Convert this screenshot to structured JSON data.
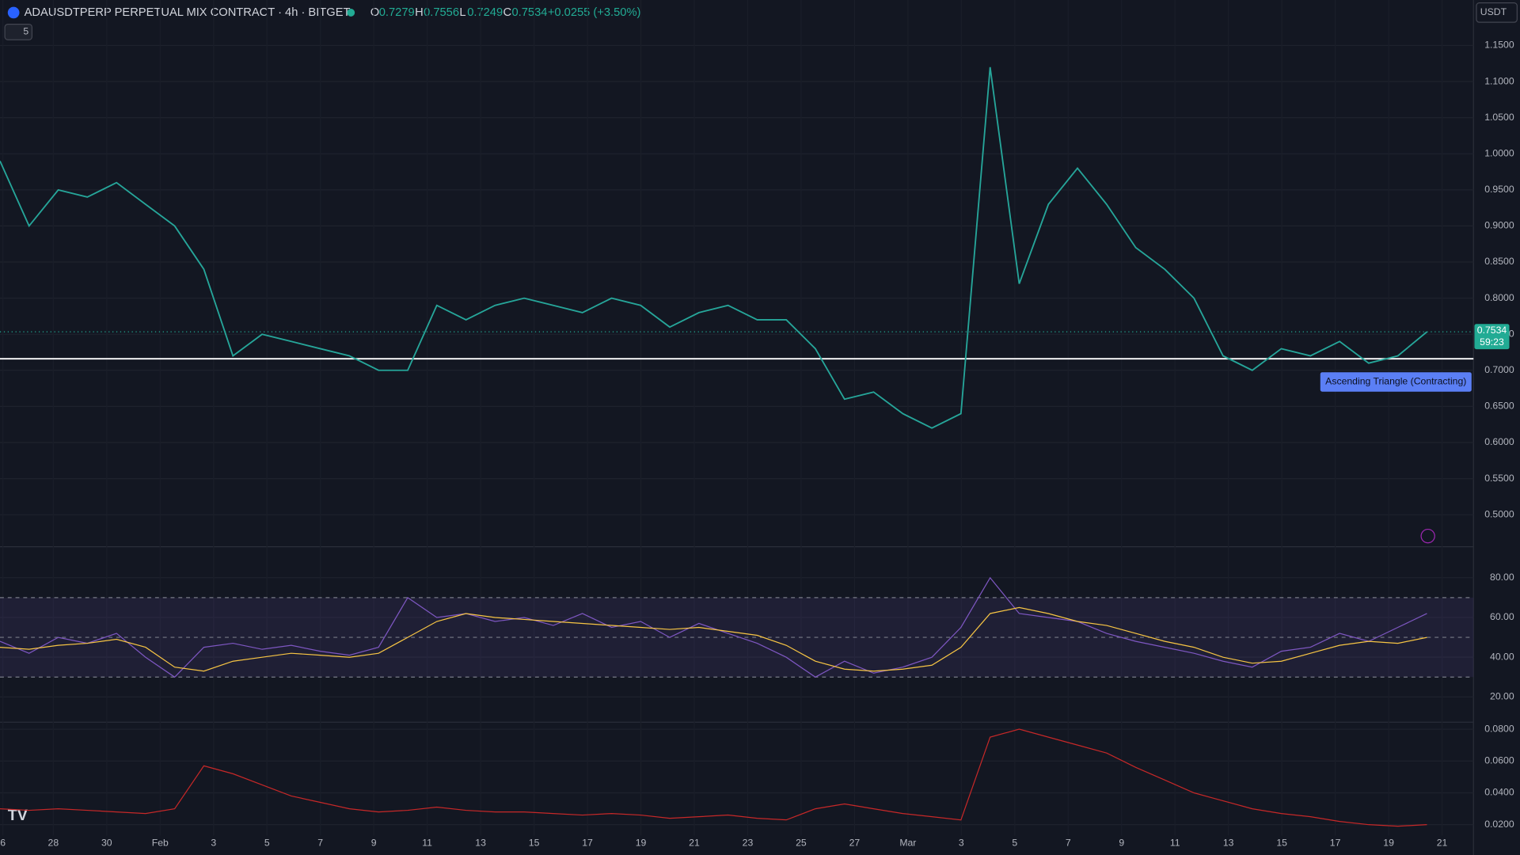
{
  "header": {
    "symbol": "ADAUSDTPERP PERPETUAL MIX CONTRACT · 4h · BITGET",
    "open_label": "O",
    "open": 0.7279,
    "high_label": "H",
    "high": 0.7556,
    "low_label": "L",
    "low": 0.7249,
    "close_label": "C",
    "close": 0.7534,
    "change": "+0.0255 (+3.50%)",
    "indicator_count": 5,
    "currency": "USDT"
  },
  "price": {
    "ylim": [
      0.457,
      1.213
    ],
    "yticks": [
      {
        "value": 1.15,
        "label": "1.1500"
      },
      {
        "value": 1.1,
        "label": "1.1000"
      },
      {
        "value": 1.05,
        "label": "1.0500"
      },
      {
        "value": 1,
        "label": "1.0000"
      },
      {
        "value": 0.95,
        "label": "0.9500"
      },
      {
        "value": 0.9,
        "label": "0.9000"
      },
      {
        "value": 0.85,
        "label": "0.8500"
      },
      {
        "value": 0.8,
        "label": "0.8000"
      },
      {
        "value": 0.75,
        "label": "0.7500"
      },
      {
        "value": 0.7,
        "label": "0.7000"
      },
      {
        "value": 0.65,
        "label": "0.6500"
      },
      {
        "value": 0.6,
        "label": "0.6000"
      },
      {
        "value": 0.55,
        "label": "0.5500"
      },
      {
        "value": 0.5,
        "label": "0.5000"
      }
    ],
    "values": [
      0.99,
      0.9,
      0.95,
      0.94,
      0.96,
      0.93,
      0.9,
      0.84,
      0.72,
      0.75,
      0.74,
      0.73,
      0.72,
      0.7,
      0.7,
      0.79,
      0.77,
      0.79,
      0.8,
      0.79,
      0.78,
      0.8,
      0.79,
      0.76,
      0.78,
      0.79,
      0.77,
      0.77,
      0.73,
      0.66,
      0.67,
      0.64,
      0.62,
      0.64,
      1.12,
      0.82,
      0.93,
      0.98,
      0.93,
      0.87,
      0.84,
      0.8,
      0.72,
      0.7,
      0.73,
      0.72,
      0.74,
      0.71,
      0.72,
      0.7534
    ],
    "level_line": 0.716,
    "last_price": 0.7534,
    "countdown": "59:23",
    "pattern_label": "Ascending Triangle (Contracting)"
  },
  "rsi": {
    "ylim": [
      7.3,
      95.1
    ],
    "yticks": [
      {
        "value": 80,
        "label": "80.00"
      },
      {
        "value": 60,
        "label": "60.00"
      },
      {
        "value": 40,
        "label": "40.00"
      },
      {
        "value": 20,
        "label": "20.00"
      }
    ],
    "bands": [
      70,
      50,
      30
    ],
    "values": [
      48,
      42,
      50,
      47,
      52,
      40,
      30,
      45,
      47,
      44,
      46,
      43,
      41,
      45,
      70,
      60,
      62,
      58,
      60,
      56,
      62,
      55,
      58,
      50,
      57,
      52,
      47,
      40,
      30,
      38,
      32,
      35,
      40,
      55,
      80,
      62,
      60,
      58,
      52,
      48,
      45,
      42,
      38,
      35,
      43,
      45,
      52,
      48,
      55,
      62
    ],
    "ma": [
      45,
      44,
      46,
      47,
      49,
      45,
      35,
      33,
      38,
      40,
      42,
      41,
      40,
      42,
      50,
      58,
      62,
      60,
      59,
      58,
      57,
      56,
      55,
      54,
      55,
      53,
      51,
      46,
      38,
      34,
      33,
      34,
      36,
      45,
      62,
      65,
      62,
      58,
      56,
      52,
      48,
      45,
      40,
      37,
      38,
      42,
      46,
      48,
      47,
      50
    ]
  },
  "atr": {
    "ylim": [
      0.0131,
      0.0838
    ],
    "yticks": [
      {
        "value": 0.08,
        "label": "0.0800"
      },
      {
        "value": 0.06,
        "label": "0.0600"
      },
      {
        "value": 0.04,
        "label": "0.0400"
      },
      {
        "value": 0.02,
        "label": "0.0200"
      }
    ],
    "values": [
      0.03,
      0.029,
      0.03,
      0.029,
      0.028,
      0.027,
      0.03,
      0.057,
      0.052,
      0.045,
      0.038,
      0.034,
      0.03,
      0.028,
      0.029,
      0.031,
      0.029,
      0.028,
      0.028,
      0.027,
      0.026,
      0.027,
      0.026,
      0.024,
      0.025,
      0.026,
      0.024,
      0.023,
      0.03,
      0.033,
      0.03,
      0.027,
      0.025,
      0.023,
      0.075,
      0.08,
      0.075,
      0.07,
      0.065,
      0.056,
      0.048,
      0.04,
      0.035,
      0.03,
      0.027,
      0.025,
      0.022,
      0.02,
      0.019,
      0.02
    ]
  },
  "dates": [
    "6",
    "28",
    "30",
    "Feb",
    "3",
    "5",
    "7",
    "9",
    "11",
    "13",
    "15",
    "17",
    "19",
    "21",
    "23",
    "25",
    "27",
    "Mar",
    "3",
    "5",
    "7",
    "9",
    "11",
    "13",
    "15",
    "17",
    "19",
    "21"
  ]
}
